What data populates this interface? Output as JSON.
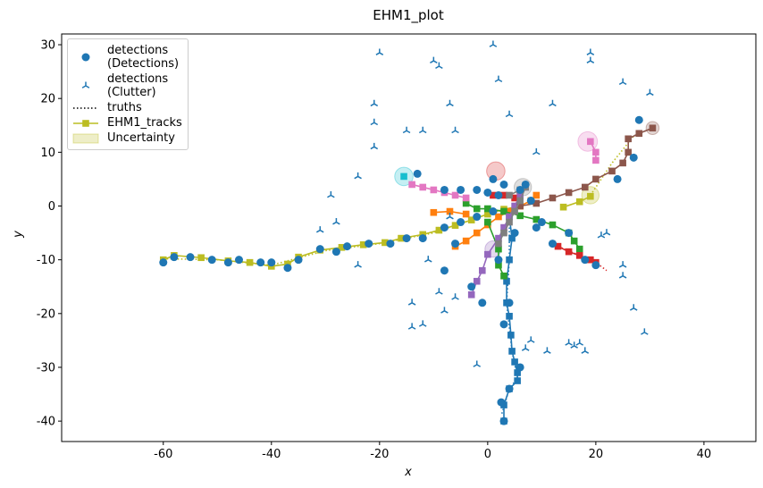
{
  "chart_data": {
    "type": "scatter",
    "title": "EHM1_plot",
    "x_label": "x",
    "y_label": "y",
    "xlim": [
      -78.8,
      49.6
    ],
    "ylim": [
      -43.8,
      32
    ],
    "xticks": [
      -60,
      -40,
      -20,
      0,
      20,
      40
    ],
    "yticks": [
      -40,
      -30,
      -20,
      -10,
      0,
      10,
      20,
      30
    ],
    "legend": "upper left",
    "series": [
      {
        "name": "detections\n(Detections)",
        "color": "#1f77b4",
        "marker": "circle",
        "x": [
          -60,
          -58,
          -55,
          -51,
          -48,
          -46,
          -42,
          -40,
          -37,
          -35,
          -31,
          -28,
          -26,
          -22,
          -18,
          -15,
          -12,
          -8,
          -5,
          -13,
          -8,
          -5,
          -2,
          0,
          1,
          2,
          3,
          6,
          7,
          8,
          -2,
          -6,
          -8,
          -3,
          -1,
          4,
          3,
          6,
          4,
          2.5,
          3,
          2,
          10,
          15,
          18,
          20,
          24,
          28,
          27,
          12,
          1,
          5,
          9
        ],
        "y": [
          -10.5,
          -9.5,
          -9.5,
          -10,
          -10.5,
          -10,
          -10.5,
          -10.5,
          -11.5,
          -10,
          -8,
          -8.5,
          -7.5,
          -7,
          -7,
          -6,
          -6,
          -4,
          -3,
          6,
          3,
          3,
          3,
          2.5,
          5,
          2,
          4,
          3,
          4,
          1,
          -2,
          -7,
          -12,
          -15,
          -18,
          -18,
          -22,
          -30,
          -34,
          -36.5,
          -40,
          -10,
          -3,
          -5,
          -10,
          -11,
          5,
          16,
          9,
          -7,
          -1,
          -5,
          -4
        ]
      },
      {
        "name": "detections\n(Clutter)",
        "color": "#1f77b4",
        "marker": "tri",
        "x": [
          1,
          -20,
          19,
          19,
          -10,
          -9,
          2,
          25,
          30,
          -21,
          -7,
          12,
          4,
          -21,
          -15,
          -12,
          -6,
          -21,
          -24,
          9,
          -29,
          -7,
          -28,
          -31,
          22,
          -24,
          -11,
          25,
          25,
          -9,
          -6,
          -14,
          -8,
          -14,
          -12,
          8,
          15,
          16,
          17,
          11,
          -2,
          27,
          29,
          7,
          18,
          21
        ],
        "y": [
          30,
          28.5,
          28.5,
          27,
          27,
          26,
          23.5,
          23,
          21,
          19,
          19,
          19,
          17,
          15.5,
          14,
          14,
          14,
          11,
          5.5,
          10,
          2,
          -2,
          -3,
          -4.5,
          -5,
          -11,
          -10,
          -11,
          -13,
          -16,
          -17,
          -18,
          -19.5,
          -22.5,
          -22,
          -25,
          -25.5,
          -26,
          -25.5,
          -27,
          -29.5,
          -19,
          -23.5,
          -26.5,
          -27,
          -5.5
        ]
      },
      {
        "name": "truths",
        "color": "#000000",
        "linestyle": "dotted",
        "lines": [
          {
            "color": "#bcbd22",
            "x": [
              -60,
              -50,
              -40,
              -30,
              -20,
              -10,
              0,
              6
            ],
            "y": [
              -9.8,
              -10,
              -11,
              -8.3,
              -7,
              -5,
              -1.5,
              0
            ]
          },
          {
            "color": "#1f77b4",
            "x": [
              4,
              4,
              3.5,
              4.5,
              5.5,
              4,
              2.5
            ],
            "y": [
              -2,
              -10,
              -18,
              -27,
              -32,
              -34,
              -39
            ]
          },
          {
            "color": "#d62728",
            "x": [
              13,
              17,
              20,
              22
            ],
            "y": [
              -7.5,
              -9.2,
              -10.5,
              -12
            ]
          },
          {
            "color": "#bcbd22",
            "x": [
              19,
              23,
              27
            ],
            "y": [
              2,
              8,
              13
            ]
          },
          {
            "color": "#8c564b",
            "x": [
              26,
              28,
              30.5
            ],
            "y": [
              12.5,
              13.5,
              14.5
            ]
          }
        ]
      },
      {
        "name": "EHM1_tracks",
        "color": "#bcbd22",
        "marker": "square",
        "lines": [
          {
            "color": "#bcbd22",
            "x": [
              -60,
              -58,
              -53,
              -48,
              -44,
              -40,
              -37,
              -35,
              -31,
              -27,
              -23,
              -19,
              -16,
              -12,
              -9,
              -6,
              -3,
              0,
              3,
              6
            ],
            "y": [
              -10,
              -9.2,
              -9.6,
              -10.2,
              -10.5,
              -11.2,
              -10.8,
              -9.5,
              -8.2,
              -7.7,
              -7.2,
              -6.8,
              -6,
              -5.3,
              -4.5,
              -3.6,
              -2.6,
              -1.5,
              -0.6,
              0
            ]
          },
          {
            "color": "#bcbd22",
            "x": [
              14,
              17,
              19
            ],
            "y": [
              -0.2,
              0.8,
              1.8
            ]
          },
          {
            "color": "#1f77b4",
            "x": [
              4,
              4.5,
              4,
              3.5,
              3.5,
              4,
              4.3,
              4.5,
              5,
              5.5,
              5.5,
              4,
              3,
              3
            ],
            "y": [
              -2,
              -6,
              -10,
              -14,
              -18,
              -20.5,
              -24,
              -27,
              -29,
              -31,
              -32.5,
              -34,
              -37,
              -40
            ]
          },
          {
            "color": "#ff7f0e",
            "x": [
              -6,
              -4,
              -2,
              0,
              2,
              4,
              6,
              8,
              9
            ],
            "y": [
              -7.5,
              -6.5,
              -5,
              -3.5,
              -2,
              -1,
              0,
              1,
              2
            ]
          },
          {
            "color": "#ff7f0e",
            "x": [
              -10,
              -7,
              -4
            ],
            "y": [
              -1.2,
              -1,
              -1.5
            ]
          },
          {
            "color": "#2ca02c",
            "x": [
              -4,
              -2,
              0,
              3,
              6,
              9,
              12,
              15,
              16,
              17
            ],
            "y": [
              0.5,
              -0.5,
              -0.5,
              -1,
              -1.8,
              -2.5,
              -3.5,
              -5,
              -6.5,
              -8
            ]
          },
          {
            "color": "#2ca02c",
            "x": [
              0,
              2,
              2,
              3
            ],
            "y": [
              -3,
              -8,
              -11,
              -13
            ]
          },
          {
            "color": "#d62728",
            "x": [
              1,
              3,
              5
            ],
            "y": [
              2,
              2,
              1.5
            ]
          },
          {
            "color": "#d62728",
            "x": [
              13,
              15,
              17,
              19,
              20
            ],
            "y": [
              -7.5,
              -8.5,
              -9.2,
              -10,
              -10.5
            ]
          },
          {
            "color": "#9467bd",
            "x": [
              -3,
              -2,
              -1,
              0,
              2,
              3,
              4,
              5,
              6,
              7
            ],
            "y": [
              -16.5,
              -14,
              -12,
              -9,
              -6,
              -4,
              -2,
              0,
              2,
              3.5
            ]
          },
          {
            "color": "#8c564b",
            "x": [
              6,
              9,
              12,
              15,
              18,
              20,
              23,
              25,
              26,
              26,
              28,
              30.5
            ],
            "y": [
              0,
              0.5,
              1.5,
              2.5,
              3.5,
              5,
              6.5,
              8,
              10,
              12.5,
              13.5,
              14.5
            ]
          },
          {
            "color": "#e377c2",
            "x": [
              -14,
              -12,
              -10,
              -8,
              -6,
              -4
            ],
            "y": [
              4,
              3.5,
              3,
              2.5,
              2,
              1.5
            ]
          },
          {
            "color": "#e377c2",
            "x": [
              19,
              20,
              20
            ],
            "y": [
              12,
              10,
              8.5
            ]
          },
          {
            "color": "#7f7f7f",
            "x": [
              4,
              6,
              7,
              6,
              5,
              4,
              3,
              2
            ],
            "y": [
              2,
              3,
              3.5,
              1,
              -1,
              -3,
              -5,
              -7
            ]
          },
          {
            "color": "#17becf",
            "x": [
              -15.5
            ],
            "y": [
              5.5
            ]
          }
        ]
      },
      {
        "name": "Uncertainty",
        "color": "#bcbd22",
        "ellipses": [
          {
            "color": "#d62728",
            "x": 1.5,
            "y": 6.5,
            "r": 1.7
          },
          {
            "color": "#17becf",
            "x": -15.5,
            "y": 5.5,
            "r": 1.7
          },
          {
            "color": "#e377c2",
            "x": 18.5,
            "y": 12,
            "r": 1.8
          },
          {
            "color": "#bcbd22",
            "x": 19,
            "y": 2,
            "r": 1.6
          },
          {
            "color": "#8c564b",
            "x": 30.5,
            "y": 14.5,
            "r": 1.2
          },
          {
            "color": "#7f7f7f",
            "x": 6.5,
            "y": 3.5,
            "r": 1.6
          },
          {
            "color": "#9467bd",
            "x": 1,
            "y": -8,
            "r": 1.5
          }
        ]
      }
    ]
  }
}
